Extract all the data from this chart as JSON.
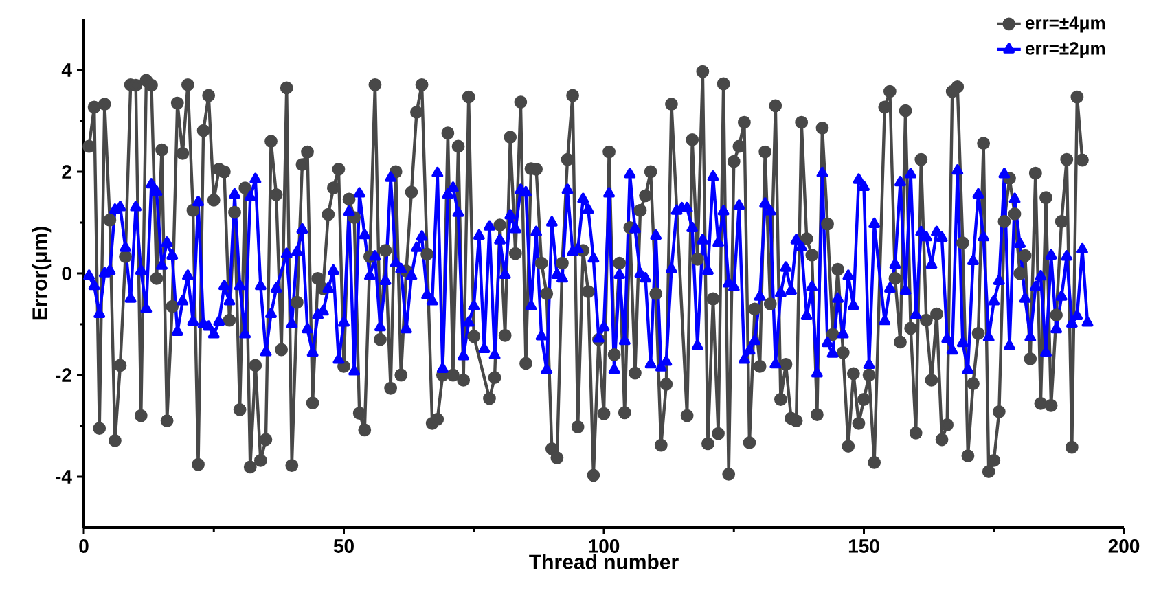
{
  "chart_data": {
    "type": "line",
    "xlabel": "Thread number",
    "ylabel": "Error(μm)",
    "xlim": [
      0,
      200
    ],
    "ylim": [
      -5,
      5
    ],
    "xticks": [
      0,
      50,
      100,
      150,
      200
    ],
    "yticks": [
      -4,
      -2,
      0,
      2,
      4
    ],
    "legend": "top right",
    "line_style": "solid",
    "series": [
      {
        "name": "err=±4μm",
        "color": "#484848",
        "marker": "circle",
        "x": [
          1,
          2,
          3,
          4,
          5,
          6,
          7,
          8,
          9,
          10,
          11,
          12,
          13,
          14,
          15,
          16,
          17,
          18,
          19,
          20,
          21,
          22,
          23,
          24,
          25,
          26,
          27,
          28,
          29,
          30,
          31,
          32,
          33,
          34,
          35,
          36,
          37,
          38,
          39,
          40,
          41,
          42,
          43,
          44,
          45,
          46,
          47,
          48,
          49,
          50,
          51,
          52,
          53,
          54,
          55,
          56,
          57,
          58,
          59,
          60,
          61,
          62,
          63,
          64,
          65,
          66,
          67,
          68,
          69,
          70,
          71,
          72,
          73,
          74,
          75,
          78,
          79,
          80,
          81,
          82,
          83,
          84,
          85,
          86,
          87,
          88,
          89,
          90,
          91,
          92,
          93,
          94,
          95,
          96,
          97,
          98,
          99,
          100,
          101,
          102,
          103,
          104,
          105,
          106,
          107,
          108,
          109,
          110,
          111,
          112,
          113,
          116,
          117,
          118,
          119,
          120,
          121,
          122,
          123,
          124,
          125,
          126,
          127,
          128,
          129,
          130,
          131,
          132,
          133,
          134,
          135,
          136,
          137,
          138,
          139,
          140,
          141,
          142,
          143,
          144,
          145,
          146,
          147,
          148,
          149,
          150,
          151,
          152,
          154,
          155,
          156,
          157,
          158,
          159,
          160,
          161,
          162,
          163,
          164,
          165,
          166,
          167,
          168,
          169,
          170,
          171,
          172,
          173,
          174,
          175,
          176,
          177,
          178,
          179,
          180,
          181,
          182,
          183,
          184,
          185,
          186,
          187,
          188,
          189,
          190,
          191,
          192
        ],
        "values": [
          2.5,
          3.27,
          -3.05,
          3.33,
          1.05,
          -3.29,
          -1.81,
          0.33,
          3.71,
          3.7,
          -2.8,
          3.8,
          3.7,
          -0.1,
          2.43,
          -2.9,
          -0.65,
          3.35,
          2.36,
          3.71,
          1.24,
          -3.76,
          2.81,
          3.5,
          1.44,
          2.05,
          2.0,
          -0.92,
          1.2,
          -2.68,
          1.68,
          -3.81,
          -1.81,
          -3.68,
          -3.27,
          2.6,
          1.55,
          -1.5,
          3.65,
          -3.78,
          -0.57,
          2.14,
          2.39,
          -2.55,
          -0.1,
          -0.3,
          1.16,
          1.68,
          2.05,
          -1.83,
          1.46,
          1.1,
          -2.75,
          -3.08,
          0.33,
          3.71,
          -1.3,
          0.45,
          -2.26,
          2.0,
          -2.0,
          0.05,
          1.6,
          3.17,
          3.71,
          0.38,
          -2.95,
          -2.87,
          -2.0,
          2.76,
          -2.0,
          2.5,
          -2.1,
          3.47,
          -1.24,
          -2.46,
          -2.05,
          0.95,
          -1.22,
          2.68,
          0.39,
          3.37,
          -1.77,
          2.06,
          2.05,
          0.2,
          -0.4,
          -3.45,
          -3.63,
          0.2,
          2.24,
          3.5,
          -3.02,
          0.45,
          -0.36,
          -3.97,
          -1.3,
          -2.76,
          2.39,
          -1.6,
          0.2,
          -2.74,
          0.9,
          -1.96,
          1.24,
          1.53,
          2.0,
          -0.4,
          -3.38,
          -2.18,
          3.33,
          -2.8,
          2.63,
          0.28,
          3.97,
          -3.35,
          -0.5,
          -3.15,
          3.73,
          -3.95,
          2.2,
          2.5,
          2.97,
          -3.33,
          -0.7,
          -1.83,
          2.39,
          -0.6,
          3.3,
          -2.48,
          -1.79,
          -2.85,
          -2.9,
          2.97,
          0.68,
          0.36,
          -2.78,
          2.86,
          0.97,
          -1.2,
          0.08,
          -1.56,
          -3.4,
          -1.97,
          -2.95,
          -2.48,
          -2.0,
          -3.72,
          3.27,
          3.58,
          -0.1,
          -1.35,
          3.2,
          -1.08,
          -3.14,
          2.24,
          -0.92,
          -2.1,
          -0.8,
          -3.27,
          -2.98,
          3.58,
          3.67,
          0.6,
          -3.59,
          -2.17,
          -1.18,
          2.56,
          -3.9,
          -3.68,
          -2.72,
          1.02,
          1.87,
          1.17,
          0.0,
          0.35,
          -1.68,
          1.97,
          -2.56,
          1.49,
          -2.6,
          -0.82,
          1.02,
          2.24,
          -3.42,
          3.47,
          2.23
        ]
      },
      {
        "name": "err=±2μm",
        "color": "#0000ff",
        "marker": "triangle",
        "x": [
          1,
          2,
          3,
          4,
          5,
          6,
          7,
          8,
          9,
          10,
          11,
          12,
          13,
          14,
          15,
          16,
          17,
          18,
          19,
          20,
          21,
          22,
          23,
          24,
          25,
          26,
          27,
          28,
          29,
          30,
          31,
          32,
          33,
          34,
          35,
          36,
          37,
          39,
          40,
          41,
          42,
          43,
          44,
          45,
          46,
          47,
          48,
          49,
          50,
          51,
          52,
          53,
          54,
          55,
          56,
          57,
          58,
          59,
          60,
          61,
          62,
          63,
          64,
          65,
          66,
          67,
          68,
          69,
          70,
          71,
          72,
          73,
          74,
          75,
          76,
          77,
          78,
          79,
          80,
          81,
          82,
          83,
          84,
          85,
          86,
          87,
          88,
          89,
          90,
          91,
          92,
          93,
          94,
          95,
          96,
          97,
          98,
          99,
          100,
          101,
          102,
          103,
          104,
          105,
          106,
          107,
          108,
          109,
          110,
          111,
          112,
          113,
          114,
          115,
          116,
          117,
          118,
          119,
          120,
          121,
          122,
          123,
          124,
          125,
          126,
          127,
          128,
          129,
          130,
          131,
          132,
          133,
          134,
          135,
          136,
          137,
          138,
          139,
          140,
          141,
          142,
          143,
          144,
          145,
          146,
          147,
          148,
          149,
          150,
          151,
          152,
          154,
          155,
          156,
          157,
          158,
          159,
          160,
          161,
          162,
          163,
          164,
          165,
          166,
          167,
          168,
          169,
          170,
          171,
          172,
          173,
          174,
          175,
          176,
          177,
          178,
          179,
          180,
          181,
          182,
          183,
          184,
          185,
          186,
          187,
          188,
          189,
          190,
          191,
          192,
          193
        ],
        "values": [
          -0.05,
          -0.25,
          -0.8,
          0.0,
          0.05,
          1.25,
          1.3,
          0.5,
          -0.5,
          1.3,
          0.05,
          -0.7,
          1.75,
          1.6,
          0.15,
          0.6,
          0.35,
          -1.15,
          -0.55,
          -0.05,
          -0.95,
          1.4,
          -1.0,
          -1.05,
          -1.2,
          -0.95,
          -0.25,
          -0.55,
          1.55,
          -0.25,
          -1.2,
          1.5,
          1.85,
          -0.25,
          -1.55,
          -0.8,
          -0.3,
          0.38,
          -1.0,
          0.42,
          0.86,
          -1.1,
          -1.56,
          -0.82,
          -0.75,
          -0.3,
          0.05,
          -1.7,
          -0.97,
          1.21,
          -1.93,
          1.57,
          0.75,
          -0.05,
          0.33,
          -1.06,
          -0.15,
          1.88,
          0.2,
          0.08,
          -1.1,
          -0.05,
          0.5,
          0.72,
          -0.43,
          -0.55,
          1.97,
          -1.88,
          1.55,
          1.68,
          1.19,
          -1.63,
          -0.97,
          -0.65,
          0.74,
          -1.49,
          0.92,
          -1.61,
          0.65,
          -0.03,
          1.14,
          0.87,
          1.64,
          1.59,
          -0.65,
          0.81,
          -1.24,
          -1.9,
          1.0,
          -0.03,
          -0.1,
          1.64,
          0.42,
          0.47,
          1.46,
          1.25,
          0.29,
          -1.28,
          -1.06,
          1.57,
          -1.9,
          -0.03,
          -1.33,
          1.95,
          0.87,
          -0.01,
          -0.1,
          -1.79,
          0.74,
          -1.85,
          -1.74,
          0.08,
          1.23,
          1.28,
          1.28,
          0.89,
          -1.43,
          0.65,
          0.05,
          1.9,
          0.6,
          1.22,
          -0.2,
          -0.27,
          1.33,
          -1.7,
          -1.52,
          -1.33,
          -0.46,
          1.37,
          1.22,
          -1.79,
          -0.39,
          0.11,
          -0.34,
          0.65,
          0.51,
          -0.84,
          -0.27,
          -1.97,
          1.97,
          -1.37,
          -1.58,
          -0.5,
          -1.2,
          -0.05,
          -0.64,
          1.84,
          1.7,
          -1.8,
          0.97,
          -0.94,
          -0.3,
          0.17,
          1.79,
          -0.34,
          1.95,
          -0.82,
          0.81,
          0.71,
          0.17,
          0.81,
          0.7,
          -1.29,
          -1.52,
          2.02,
          -1.37,
          -1.9,
          0.24,
          1.55,
          0.71,
          -1.26,
          -0.55,
          -0.15,
          1.95,
          -1.43,
          1.46,
          0.58,
          -0.5,
          -1.26,
          -0.27,
          -0.06,
          -1.56,
          0.35,
          -1.1,
          -0.46,
          0.33,
          -0.99,
          -0.84,
          0.47,
          -0.97
        ]
      }
    ]
  }
}
